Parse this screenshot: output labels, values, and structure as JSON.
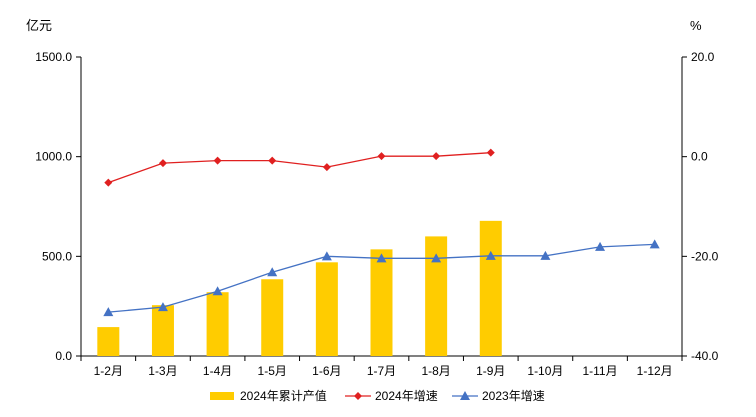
{
  "chart_data": {
    "type": "bar",
    "categories": [
      "1-2月",
      "1-3月",
      "1-4月",
      "1-5月",
      "1-6月",
      "1-7月",
      "1-8月",
      "1-9月",
      "1-10月",
      "1-11月",
      "1-12月"
    ],
    "y_left": {
      "unit": "亿元",
      "min": 0,
      "max": 1500,
      "ticks": [
        "0.0",
        "500.0",
        "1000.0",
        "1500.0"
      ]
    },
    "y_right": {
      "unit": "%",
      "min": -40,
      "max": 20,
      "ticks": [
        "-40.0",
        "-20.0",
        "0.0",
        "20.0"
      ]
    },
    "series": [
      {
        "name": "2024年累计产值",
        "type": "bar",
        "axis": "left",
        "color": "#FFCC00",
        "values": [
          145,
          255,
          320,
          385,
          470,
          535,
          600,
          678,
          null,
          null,
          null
        ]
      },
      {
        "name": "2024年增速",
        "type": "line",
        "axis": "right",
        "color": "#E02020",
        "marker": "diamond",
        "values": [
          -5.2,
          -1.3,
          -0.8,
          -0.8,
          -2.1,
          0.1,
          0.1,
          0.8,
          null,
          null,
          null
        ]
      },
      {
        "name": "2023年增速",
        "type": "line",
        "axis": "right",
        "color": "#4472C4",
        "marker": "triangle",
        "values": [
          -31.2,
          -30.2,
          -27.0,
          -23.2,
          -20.0,
          -20.4,
          -20.4,
          -19.9,
          -19.9,
          -18.1,
          -17.6
        ]
      }
    ],
    "legend_position": "bottom",
    "grid": false
  }
}
